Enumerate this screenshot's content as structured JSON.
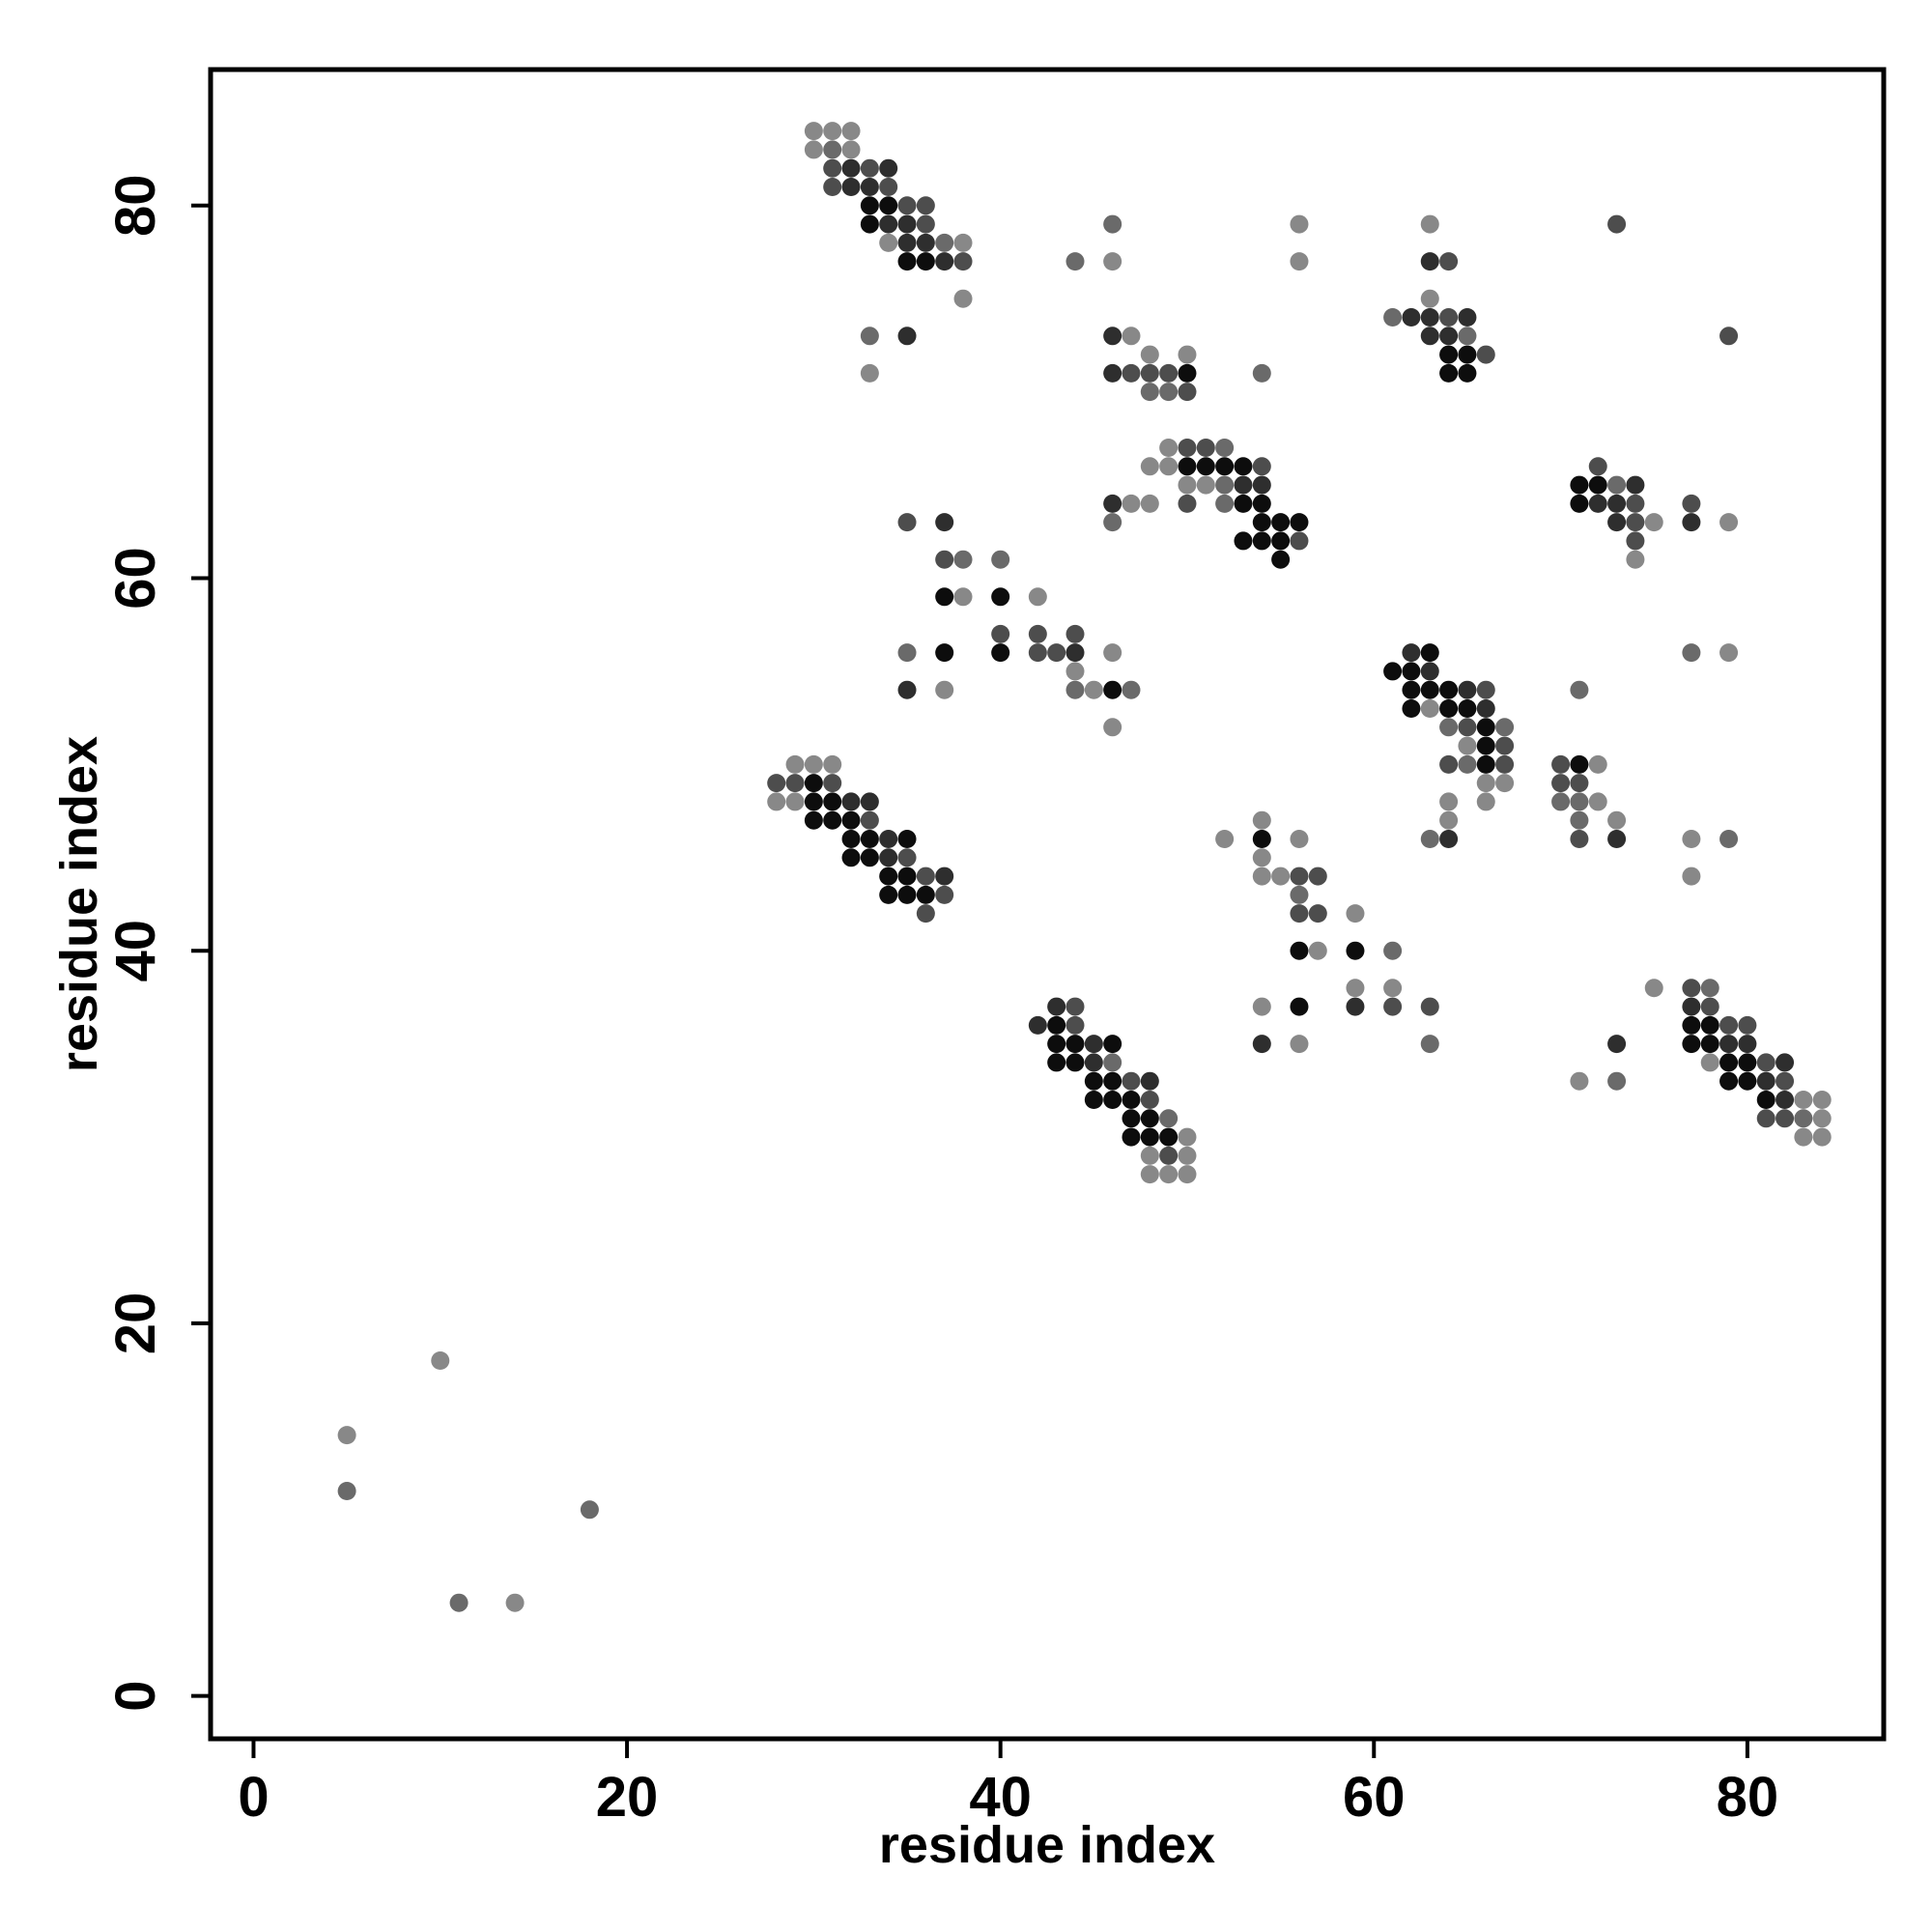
{
  "chart_data": {
    "type": "scatter",
    "title": "",
    "xlabel": "residue index",
    "ylabel": "residue index",
    "xlim": [
      -2.3,
      87.3
    ],
    "ylim": [
      -2.3,
      87.3
    ],
    "xticks": [
      0,
      20,
      40,
      60,
      80
    ],
    "yticks": [
      0,
      20,
      40,
      60,
      80
    ],
    "grid": false,
    "legend": "none",
    "marker_colors": {
      "1": "#888888",
      "2": "#6a6a6a",
      "3": "#4d4d4d",
      "4": "#2e2e2e",
      "5": "#0d0d0d"
    },
    "points": [
      [
        30,
        84,
        1
      ],
      [
        31,
        84,
        1
      ],
      [
        32,
        84,
        1
      ],
      [
        30,
        83,
        1
      ],
      [
        31,
        83,
        2
      ],
      [
        32,
        83,
        1
      ],
      [
        31,
        82,
        3
      ],
      [
        32,
        82,
        4
      ],
      [
        33,
        82,
        3
      ],
      [
        34,
        82,
        4
      ],
      [
        31,
        81,
        3
      ],
      [
        32,
        81,
        4
      ],
      [
        33,
        81,
        4
      ],
      [
        34,
        81,
        3
      ],
      [
        33,
        80,
        5
      ],
      [
        34,
        80,
        5
      ],
      [
        35,
        80,
        3
      ],
      [
        36,
        80,
        3
      ],
      [
        33,
        79,
        5
      ],
      [
        34,
        79,
        4
      ],
      [
        35,
        79,
        4
      ],
      [
        36,
        79,
        3
      ],
      [
        34,
        78,
        1
      ],
      [
        35,
        78,
        4
      ],
      [
        36,
        78,
        4
      ],
      [
        37,
        78,
        2
      ],
      [
        38,
        78,
        1
      ],
      [
        35,
        77,
        5
      ],
      [
        36,
        77,
        5
      ],
      [
        37,
        77,
        4
      ],
      [
        38,
        77,
        3
      ],
      [
        38,
        75,
        1
      ],
      [
        33,
        73,
        2
      ],
      [
        35,
        73,
        4
      ],
      [
        33,
        71,
        1
      ],
      [
        46,
        79,
        2
      ],
      [
        44,
        77,
        2
      ],
      [
        46,
        77,
        1
      ],
      [
        46,
        73,
        4
      ],
      [
        47,
        73,
        1
      ],
      [
        48,
        72,
        1
      ],
      [
        50,
        72,
        1
      ],
      [
        46,
        71,
        4
      ],
      [
        47,
        71,
        3
      ],
      [
        48,
        71,
        3
      ],
      [
        49,
        71,
        3
      ],
      [
        50,
        71,
        5
      ],
      [
        48,
        70,
        2
      ],
      [
        49,
        70,
        2
      ],
      [
        50,
        70,
        3
      ],
      [
        54,
        71,
        2
      ],
      [
        56,
        79,
        1
      ],
      [
        56,
        77,
        1
      ],
      [
        63,
        79,
        1
      ],
      [
        63,
        77,
        4
      ],
      [
        64,
        77,
        3
      ],
      [
        63,
        75,
        1
      ],
      [
        61,
        74,
        2
      ],
      [
        62,
        74,
        4
      ],
      [
        63,
        74,
        4
      ],
      [
        64,
        74,
        3
      ],
      [
        65,
        74,
        4
      ],
      [
        63,
        73,
        4
      ],
      [
        64,
        73,
        4
      ],
      [
        65,
        73,
        2
      ],
      [
        64,
        72,
        5
      ],
      [
        65,
        72,
        5
      ],
      [
        66,
        72,
        3
      ],
      [
        64,
        71,
        5
      ],
      [
        65,
        71,
        5
      ],
      [
        73,
        79,
        3
      ],
      [
        79,
        73,
        3
      ],
      [
        49,
        67,
        1
      ],
      [
        50,
        67,
        3
      ],
      [
        51,
        67,
        3
      ],
      [
        52,
        67,
        2
      ],
      [
        48,
        66,
        1
      ],
      [
        49,
        66,
        1
      ],
      [
        50,
        66,
        5
      ],
      [
        51,
        66,
        5
      ],
      [
        52,
        66,
        5
      ],
      [
        53,
        66,
        5
      ],
      [
        54,
        66,
        3
      ],
      [
        50,
        65,
        1
      ],
      [
        51,
        65,
        1
      ],
      [
        52,
        65,
        2
      ],
      [
        53,
        65,
        4
      ],
      [
        54,
        65,
        4
      ],
      [
        46,
        64,
        4
      ],
      [
        47,
        64,
        1
      ],
      [
        48,
        64,
        1
      ],
      [
        50,
        64,
        3
      ],
      [
        52,
        64,
        2
      ],
      [
        53,
        64,
        5
      ],
      [
        54,
        64,
        5
      ],
      [
        46,
        63,
        2
      ],
      [
        54,
        63,
        5
      ],
      [
        55,
        63,
        5
      ],
      [
        56,
        63,
        5
      ],
      [
        53,
        62,
        5
      ],
      [
        54,
        62,
        5
      ],
      [
        55,
        62,
        5
      ],
      [
        56,
        62,
        3
      ],
      [
        55,
        61,
        5
      ],
      [
        35,
        63,
        3
      ],
      [
        37,
        63,
        4
      ],
      [
        37,
        61,
        3
      ],
      [
        38,
        61,
        2
      ],
      [
        40,
        61,
        2
      ],
      [
        37,
        59,
        5
      ],
      [
        38,
        59,
        1
      ],
      [
        40,
        59,
        5
      ],
      [
        42,
        59,
        1
      ],
      [
        40,
        57,
        3
      ],
      [
        42,
        57,
        3
      ],
      [
        44,
        57,
        3
      ],
      [
        35,
        56,
        2
      ],
      [
        37,
        56,
        5
      ],
      [
        40,
        56,
        5
      ],
      [
        42,
        56,
        3
      ],
      [
        43,
        56,
        3
      ],
      [
        44,
        56,
        4
      ],
      [
        46,
        56,
        1
      ],
      [
        44,
        55,
        1
      ],
      [
        35,
        54,
        4
      ],
      [
        37,
        54,
        1
      ],
      [
        44,
        54,
        2
      ],
      [
        45,
        54,
        1
      ],
      [
        46,
        54,
        5
      ],
      [
        47,
        54,
        2
      ],
      [
        46,
        52,
        1
      ],
      [
        72,
        66,
        3
      ],
      [
        71,
        65,
        5
      ],
      [
        72,
        65,
        5
      ],
      [
        73,
        65,
        2
      ],
      [
        74,
        65,
        4
      ],
      [
        71,
        64,
        5
      ],
      [
        72,
        64,
        4
      ],
      [
        73,
        64,
        4
      ],
      [
        74,
        64,
        3
      ],
      [
        77,
        64,
        3
      ],
      [
        73,
        63,
        4
      ],
      [
        74,
        63,
        3
      ],
      [
        75,
        63,
        1
      ],
      [
        77,
        63,
        4
      ],
      [
        79,
        63,
        1
      ],
      [
        74,
        62,
        3
      ],
      [
        74,
        61,
        1
      ],
      [
        62,
        56,
        4
      ],
      [
        63,
        56,
        5
      ],
      [
        61,
        55,
        5
      ],
      [
        62,
        55,
        5
      ],
      [
        63,
        55,
        4
      ],
      [
        62,
        54,
        5
      ],
      [
        63,
        54,
        5
      ],
      [
        64,
        54,
        5
      ],
      [
        65,
        54,
        4
      ],
      [
        66,
        54,
        3
      ],
      [
        71,
        54,
        2
      ],
      [
        62,
        53,
        5
      ],
      [
        63,
        53,
        1
      ],
      [
        64,
        53,
        5
      ],
      [
        65,
        53,
        5
      ],
      [
        66,
        53,
        4
      ],
      [
        64,
        52,
        2
      ],
      [
        65,
        52,
        3
      ],
      [
        66,
        52,
        5
      ],
      [
        67,
        52,
        2
      ],
      [
        65,
        51,
        1
      ],
      [
        66,
        51,
        5
      ],
      [
        67,
        51,
        3
      ],
      [
        64,
        50,
        3
      ],
      [
        65,
        50,
        2
      ],
      [
        66,
        50,
        5
      ],
      [
        67,
        50,
        3
      ],
      [
        66,
        49,
        1
      ],
      [
        67,
        49,
        1
      ],
      [
        64,
        48,
        1
      ],
      [
        66,
        48,
        1
      ],
      [
        64,
        47,
        1
      ],
      [
        63,
        46,
        2
      ],
      [
        64,
        46,
        4
      ],
      [
        77,
        56,
        2
      ],
      [
        79,
        56,
        1
      ],
      [
        70,
        50,
        3
      ],
      [
        71,
        50,
        5
      ],
      [
        72,
        50,
        1
      ],
      [
        70,
        49,
        3
      ],
      [
        71,
        49,
        3
      ],
      [
        70,
        48,
        2
      ],
      [
        71,
        48,
        2
      ],
      [
        72,
        48,
        1
      ],
      [
        71,
        47,
        2
      ],
      [
        73,
        47,
        1
      ],
      [
        71,
        46,
        3
      ],
      [
        73,
        46,
        4
      ],
      [
        77,
        46,
        1
      ],
      [
        79,
        46,
        2
      ],
      [
        77,
        44,
        1
      ],
      [
        29,
        50,
        1
      ],
      [
        30,
        50,
        1
      ],
      [
        31,
        50,
        1
      ],
      [
        28,
        49,
        3
      ],
      [
        29,
        49,
        3
      ],
      [
        30,
        49,
        5
      ],
      [
        31,
        49,
        3
      ],
      [
        28,
        48,
        1
      ],
      [
        29,
        48,
        1
      ],
      [
        30,
        48,
        5
      ],
      [
        31,
        48,
        5
      ],
      [
        32,
        48,
        4
      ],
      [
        33,
        48,
        4
      ],
      [
        30,
        47,
        5
      ],
      [
        31,
        47,
        5
      ],
      [
        32,
        47,
        5
      ],
      [
        33,
        47,
        3
      ],
      [
        32,
        46,
        5
      ],
      [
        33,
        46,
        5
      ],
      [
        34,
        46,
        4
      ],
      [
        35,
        46,
        5
      ],
      [
        32,
        45,
        5
      ],
      [
        33,
        45,
        5
      ],
      [
        34,
        45,
        4
      ],
      [
        35,
        45,
        3
      ],
      [
        34,
        44,
        5
      ],
      [
        35,
        44,
        5
      ],
      [
        36,
        44,
        3
      ],
      [
        37,
        44,
        4
      ],
      [
        34,
        43,
        5
      ],
      [
        35,
        43,
        5
      ],
      [
        36,
        43,
        5
      ],
      [
        37,
        43,
        3
      ],
      [
        36,
        42,
        3
      ],
      [
        52,
        46,
        1
      ],
      [
        54,
        46,
        5
      ],
      [
        56,
        46,
        1
      ],
      [
        54,
        47,
        1
      ],
      [
        54,
        45,
        1
      ],
      [
        54,
        44,
        1
      ],
      [
        55,
        44,
        1
      ],
      [
        56,
        44,
        3
      ],
      [
        57,
        44,
        3
      ],
      [
        56,
        43,
        2
      ],
      [
        56,
        42,
        3
      ],
      [
        57,
        42,
        3
      ],
      [
        59,
        42,
        1
      ],
      [
        56,
        40,
        5
      ],
      [
        57,
        40,
        1
      ],
      [
        59,
        40,
        5
      ],
      [
        61,
        40,
        2
      ],
      [
        59,
        38,
        1
      ],
      [
        61,
        38,
        1
      ],
      [
        75,
        38,
        1
      ],
      [
        54,
        37,
        1
      ],
      [
        56,
        37,
        5
      ],
      [
        59,
        37,
        4
      ],
      [
        61,
        37,
        3
      ],
      [
        63,
        37,
        3
      ],
      [
        54,
        35,
        4
      ],
      [
        56,
        35,
        1
      ],
      [
        63,
        35,
        2
      ],
      [
        43,
        37,
        4
      ],
      [
        44,
        37,
        3
      ],
      [
        42,
        36,
        4
      ],
      [
        43,
        36,
        5
      ],
      [
        44,
        36,
        3
      ],
      [
        43,
        35,
        5
      ],
      [
        44,
        35,
        5
      ],
      [
        45,
        35,
        4
      ],
      [
        46,
        35,
        5
      ],
      [
        43,
        34,
        5
      ],
      [
        44,
        34,
        5
      ],
      [
        45,
        34,
        4
      ],
      [
        46,
        34,
        2
      ],
      [
        45,
        33,
        5
      ],
      [
        46,
        33,
        5
      ],
      [
        47,
        33,
        3
      ],
      [
        48,
        33,
        4
      ],
      [
        45,
        32,
        5
      ],
      [
        46,
        32,
        5
      ],
      [
        47,
        32,
        5
      ],
      [
        48,
        32,
        3
      ],
      [
        47,
        31,
        5
      ],
      [
        48,
        31,
        5
      ],
      [
        49,
        31,
        2
      ],
      [
        47,
        30,
        5
      ],
      [
        48,
        30,
        5
      ],
      [
        49,
        30,
        5
      ],
      [
        50,
        30,
        1
      ],
      [
        48,
        29,
        1
      ],
      [
        49,
        29,
        3
      ],
      [
        50,
        29,
        1
      ],
      [
        48,
        28,
        1
      ],
      [
        49,
        28,
        1
      ],
      [
        50,
        28,
        1
      ],
      [
        73,
        35,
        4
      ],
      [
        71,
        33,
        1
      ],
      [
        73,
        33,
        2
      ],
      [
        77,
        38,
        3
      ],
      [
        78,
        38,
        2
      ],
      [
        77,
        37,
        4
      ],
      [
        78,
        37,
        3
      ],
      [
        77,
        36,
        5
      ],
      [
        78,
        36,
        5
      ],
      [
        79,
        36,
        3
      ],
      [
        80,
        36,
        3
      ],
      [
        77,
        35,
        5
      ],
      [
        78,
        35,
        5
      ],
      [
        79,
        35,
        4
      ],
      [
        80,
        35,
        4
      ],
      [
        78,
        34,
        1
      ],
      [
        79,
        34,
        5
      ],
      [
        80,
        34,
        5
      ],
      [
        81,
        34,
        3
      ],
      [
        82,
        34,
        4
      ],
      [
        79,
        33,
        5
      ],
      [
        80,
        33,
        5
      ],
      [
        81,
        33,
        4
      ],
      [
        82,
        33,
        3
      ],
      [
        81,
        32,
        5
      ],
      [
        82,
        32,
        4
      ],
      [
        83,
        32,
        1
      ],
      [
        84,
        32,
        1
      ],
      [
        81,
        31,
        3
      ],
      [
        82,
        31,
        3
      ],
      [
        83,
        31,
        2
      ],
      [
        84,
        31,
        1
      ],
      [
        83,
        30,
        1
      ],
      [
        84,
        30,
        1
      ],
      [
        10,
        18,
        1
      ],
      [
        5,
        14,
        1
      ],
      [
        5,
        11,
        2
      ],
      [
        18,
        10,
        2
      ],
      [
        11,
        5,
        2
      ],
      [
        14,
        5,
        1
      ]
    ]
  }
}
